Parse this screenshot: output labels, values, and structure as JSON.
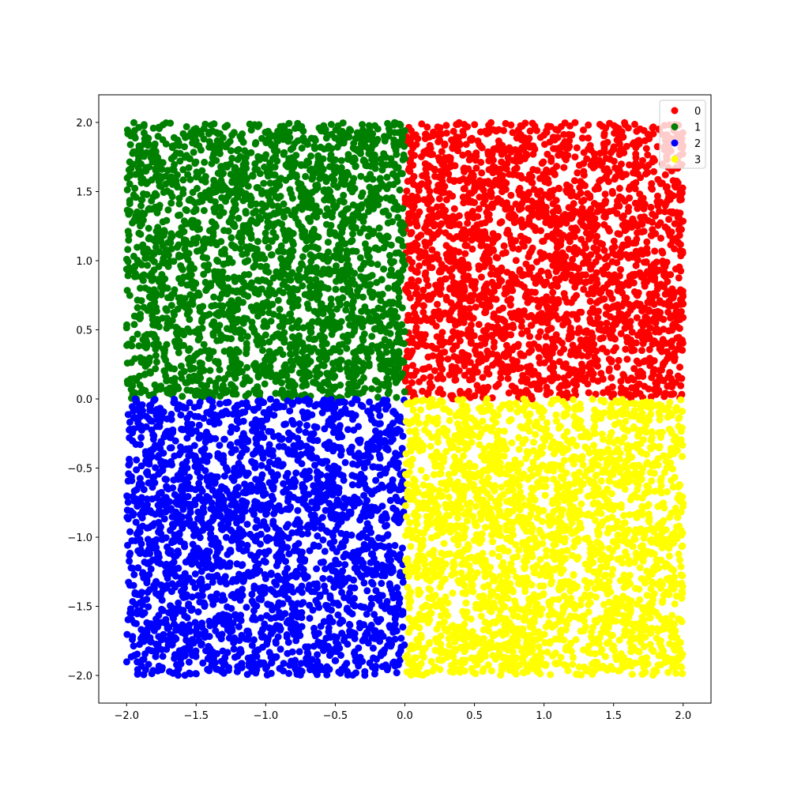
{
  "chart_data": {
    "type": "scatter",
    "title": "",
    "xlabel": "",
    "ylabel": "",
    "xlim": [
      -2.2,
      2.2
    ],
    "ylim": [
      -2.2,
      2.2
    ],
    "grid": false,
    "legend_position": "top-right",
    "x_ticks": [
      "−2.0",
      "−1.5",
      "−1.0",
      "−0.5",
      "0.0",
      "0.5",
      "1.0",
      "1.5",
      "2.0"
    ],
    "y_ticks": [
      "−2.0",
      "−1.5",
      "−1.0",
      "−0.5",
      "0.0",
      "0.5",
      "1.0",
      "1.5",
      "2.0"
    ],
    "series": [
      {
        "name": "0",
        "color": "#ff0000",
        "x_range": [
          0,
          2
        ],
        "y_range": [
          0,
          2
        ]
      },
      {
        "name": "1",
        "color": "#008000",
        "x_range": [
          -2,
          0
        ],
        "y_range": [
          0,
          2
        ]
      },
      {
        "name": "2",
        "color": "#0000ff",
        "x_range": [
          -2,
          0
        ],
        "y_range": [
          -2,
          0
        ]
      },
      {
        "name": "3",
        "color": "#ffff00",
        "x_range": [
          0,
          2
        ],
        "y_range": [
          -2,
          0
        ]
      }
    ]
  }
}
